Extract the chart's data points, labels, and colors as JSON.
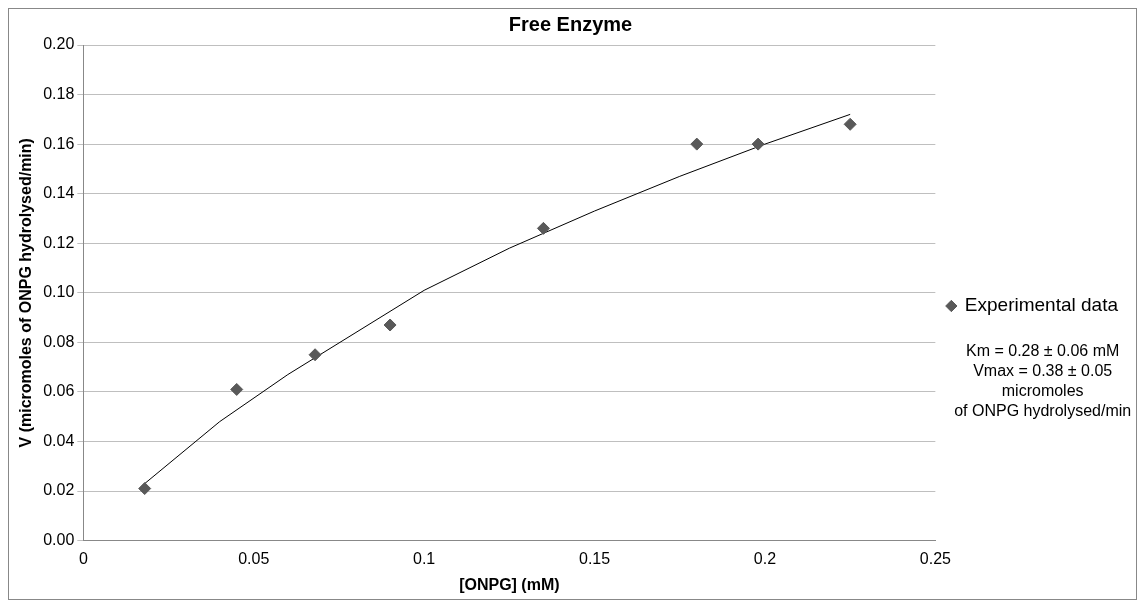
{
  "chart_data": {
    "type": "scatter",
    "title": "Free Enzyme",
    "xlabel": "[ONPG] (mM)",
    "ylabel": "V (micromoles of ONPG hydrolysed/min)",
    "series": [
      {
        "name": "Experimental data",
        "color": "#595959",
        "marker": "diamond",
        "x": [
          0.018,
          0.045,
          0.068,
          0.09,
          0.135,
          0.18,
          0.198,
          0.225
        ],
        "values": [
          0.021,
          0.061,
          0.075,
          0.087,
          0.126,
          0.16,
          0.16,
          0.168
        ]
      },
      {
        "type": "line",
        "color": "#000000",
        "marker": "none",
        "x": [
          0.018,
          0.04,
          0.06,
          0.08,
          0.1,
          0.125,
          0.15,
          0.175,
          0.2,
          0.225
        ],
        "values": [
          0.023,
          0.048,
          0.067,
          0.084,
          0.101,
          0.118,
          0.133,
          0.147,
          0.16,
          0.172
        ]
      }
    ],
    "xlim": [
      0,
      0.25
    ],
    "xticks": [
      0,
      0.05,
      0.1,
      0.15,
      0.2,
      0.25
    ],
    "ylim": [
      0,
      0.2
    ],
    "yticks": [
      {
        "value": 0,
        "label": "0.00"
      },
      {
        "value": 0.02,
        "label": "0.02"
      },
      {
        "value": 0.04,
        "label": "0.04"
      },
      {
        "value": 0.06,
        "label": "0.06"
      },
      {
        "value": 0.08,
        "label": "0.08"
      },
      {
        "value": 0.1,
        "label": "0.10"
      },
      {
        "value": 0.12,
        "label": "0.12"
      },
      {
        "value": 0.14,
        "label": "0.14"
      },
      {
        "value": 0.16,
        "label": "0.16"
      },
      {
        "value": 0.18,
        "label": "0.18"
      },
      {
        "value": 0.2,
        "label": "0.20"
      }
    ],
    "grid": "y",
    "legend": "right",
    "annotations": [
      "Km = 0.28 ± 0.06 mM\nVmax = 0.38 ± 0.05\nmicromoles\nof ONPG hydrolysed/min"
    ]
  }
}
